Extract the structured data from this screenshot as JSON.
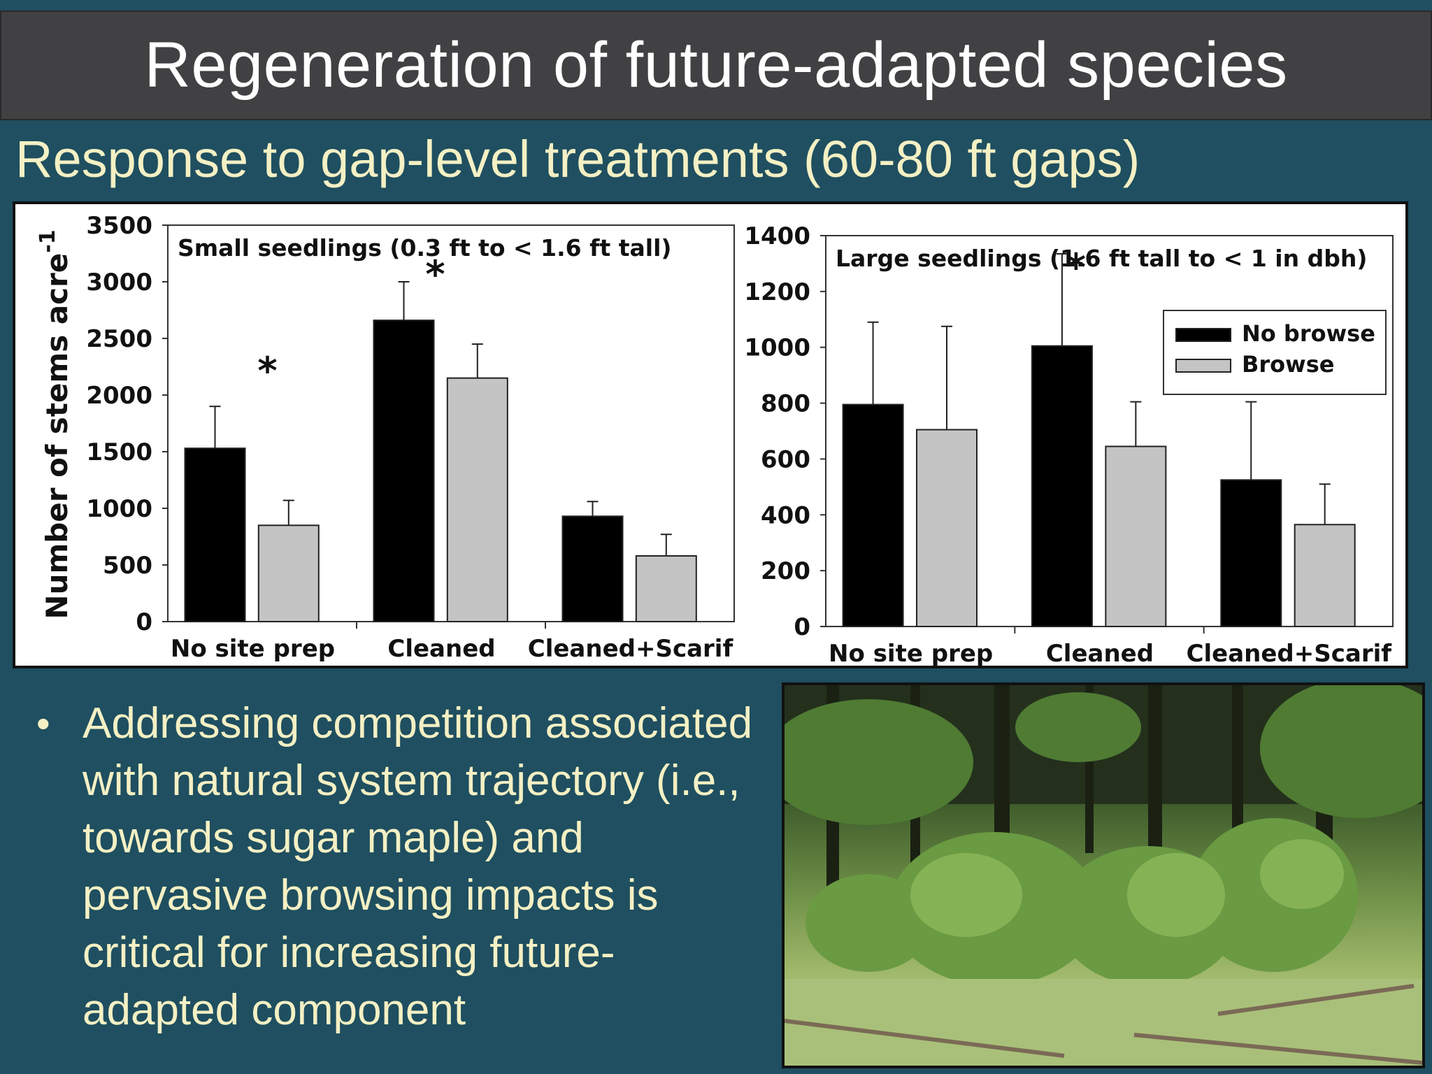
{
  "slide": {
    "title": "Regeneration of future-adapted species",
    "subtitle": "Response to gap-level treatments (60-80 ft gaps)",
    "bullet": "Addressing competition associated with natural system trajectory (i.e., towards sugar maple) and pervasive browsing impacts is critical for increasing future-adapted component",
    "bullet_marker": "•"
  },
  "colors": {
    "background": "#1f4f60",
    "title_bar": "#414143",
    "text": "#f4f0c4",
    "no_browse": "#000000",
    "browse": "#c4c4c4"
  },
  "chart_data": [
    {
      "type": "bar",
      "title": "Small seedlings (0.3 ft to < 1.6 ft tall)",
      "ylabel": "Number of stems acre",
      "ylabel_superscript": "-1",
      "categories": [
        "No site prep",
        "Cleaned",
        "Cleaned+Scarif"
      ],
      "ylim": [
        0,
        3500
      ],
      "yticks": [
        0,
        500,
        1000,
        1500,
        2000,
        2500,
        3000,
        3500
      ],
      "series": [
        {
          "name": "No browse",
          "values": [
            1530,
            2660,
            930
          ],
          "errors": [
            370,
            340,
            130
          ]
        },
        {
          "name": "Browse",
          "values": [
            850,
            2150,
            580
          ],
          "errors": [
            220,
            300,
            190
          ]
        }
      ],
      "significance": [
        "*",
        "*",
        ""
      ]
    },
    {
      "type": "bar",
      "title": "Large seedlings (1.6 ft tall to < 1 in dbh)",
      "categories": [
        "No site prep",
        "Cleaned",
        "Cleaned+Scarif"
      ],
      "ylim": [
        0,
        1400
      ],
      "yticks": [
        0,
        200,
        400,
        600,
        800,
        1000,
        1200,
        1400
      ],
      "series": [
        {
          "name": "No browse",
          "values": [
            795,
            1005,
            525
          ],
          "errors": [
            295,
            330,
            280
          ]
        },
        {
          "name": "Browse",
          "values": [
            705,
            645,
            365
          ],
          "errors": [
            370,
            160,
            145
          ]
        }
      ],
      "significance": [
        "",
        "*",
        ""
      ],
      "legend": "top-right"
    }
  ]
}
